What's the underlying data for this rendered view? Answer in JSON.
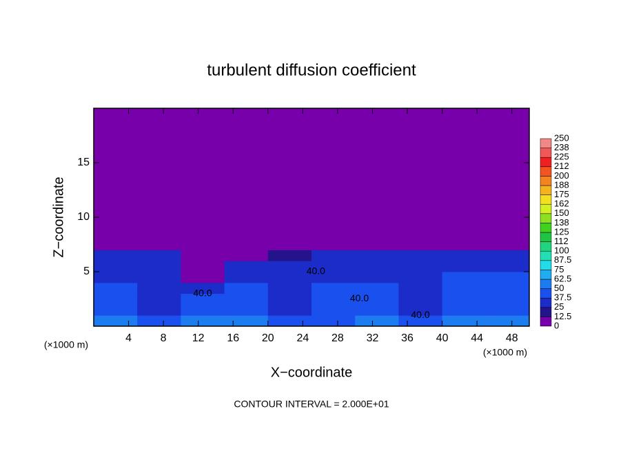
{
  "chart_data": {
    "type": "heatmap",
    "title": "turbulent diffusion coefficient",
    "x_label": "X−coordinate",
    "y_label": "Z−coordinate",
    "x_unit": "(×1000 m)",
    "x_unit_right": "(×1000 m)",
    "footnote": "CONTOUR INTERVAL = 2.000E+01",
    "xlim": [
      0,
      50
    ],
    "ylim": [
      0,
      20
    ],
    "xticks": [
      4,
      8,
      12,
      16,
      20,
      24,
      28,
      32,
      36,
      40,
      44,
      48
    ],
    "yticks": [
      5,
      10,
      15
    ],
    "x_edges": [
      0,
      5,
      10,
      15,
      20,
      25,
      30,
      35,
      40,
      45,
      50
    ],
    "z_edges": [
      0,
      1,
      2,
      3,
      4,
      5,
      6,
      7,
      8,
      20
    ],
    "values": [
      [
        50,
        45,
        55,
        55,
        45,
        45,
        55,
        45,
        50,
        50
      ],
      [
        40,
        30,
        45,
        40,
        35,
        40,
        40,
        35,
        45,
        45
      ],
      [
        40,
        25,
        40,
        40,
        35,
        40,
        40,
        30,
        45,
        40
      ],
      [
        40,
        30,
        25,
        40,
        35,
        40,
        40,
        35,
        40,
        45
      ],
      [
        35,
        30,
        10,
        35,
        35,
        35,
        35,
        35,
        40,
        40
      ],
      [
        35,
        30,
        5,
        30,
        35,
        30,
        35,
        35,
        35,
        35
      ],
      [
        30,
        25,
        0,
        10,
        20,
        30,
        35,
        30,
        30,
        30
      ],
      [
        10,
        5,
        0,
        0,
        5,
        5,
        10,
        5,
        5,
        10
      ],
      [
        0,
        0,
        0,
        0,
        0,
        0,
        0,
        0,
        0,
        0
      ]
    ],
    "contour_labels": [
      {
        "label": "40.0",
        "x": 12.5,
        "z": 3
      },
      {
        "label": "40.0",
        "x": 25.5,
        "z": 5
      },
      {
        "label": "40.0",
        "x": 30.5,
        "z": 2.5
      },
      {
        "label": "40.0",
        "x": 37.5,
        "z": 1
      }
    ],
    "colorbar": {
      "levels": [
        0,
        12.5,
        25,
        37.5,
        50,
        62.5,
        75,
        87.5,
        100,
        112,
        125,
        138,
        150,
        162,
        175,
        188,
        200,
        212,
        225,
        238,
        250
      ],
      "colors": [
        "#7700aa",
        "#24148c",
        "#1c2cc8",
        "#1a50ee",
        "#1c7cf0",
        "#20acf0",
        "#20dce8",
        "#20e0b4",
        "#20d480",
        "#20c444",
        "#40d020",
        "#8ce020",
        "#d4f020",
        "#f4e020",
        "#f4b420",
        "#f48420",
        "#f45420",
        "#f02020",
        "#f05858",
        "#f08888"
      ]
    }
  }
}
